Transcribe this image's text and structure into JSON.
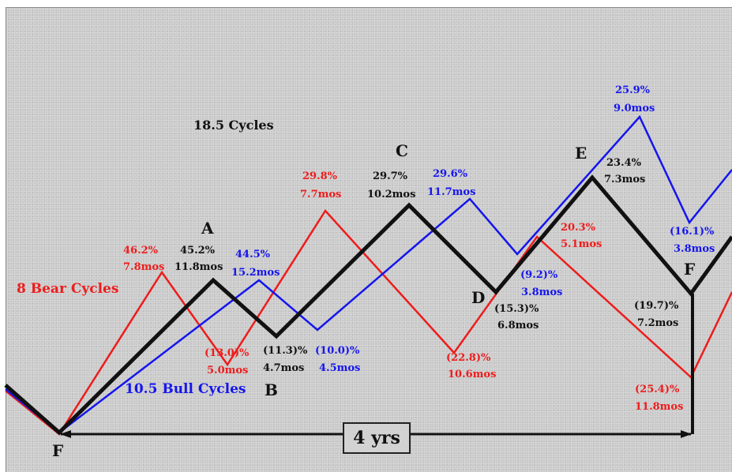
{
  "title": "18.5 Cycles",
  "bear_cycles_label": "8 Bear Cycles",
  "bull_cycles_label": "10.5 Bull Cycles",
  "span_label": "4 yrs",
  "colors": {
    "bear": "#ee1c1c",
    "bull": "#1515ee",
    "composite": "#111111"
  },
  "points": {
    "F_start": "F",
    "A": "A",
    "B": "B",
    "C": "C",
    "D": "D",
    "E": "E",
    "F_mid": "F"
  },
  "annotations": {
    "red": [
      {
        "pct": "46.2%",
        "dur": "7.8mos"
      },
      {
        "pct": "(13.0)%",
        "dur": "5.0mos"
      },
      {
        "pct": "29.8%",
        "dur": "7.7mos"
      },
      {
        "pct": "(22.8)%",
        "dur": "10.6mos"
      },
      {
        "pct": "20.3%",
        "dur": "5.1mos"
      },
      {
        "pct": "(25.4)%",
        "dur": "11.8mos"
      }
    ],
    "black": [
      {
        "pct": "45.2%",
        "dur": "11.8mos"
      },
      {
        "pct": "(11.3)%",
        "dur": "4.7mos"
      },
      {
        "pct": "29.7%",
        "dur": "10.2mos"
      },
      {
        "pct": "(15.3)%",
        "dur": "6.8mos"
      },
      {
        "pct": "23.4%",
        "dur": "7.3mos"
      },
      {
        "pct": "(19.7)%",
        "dur": "7.2mos"
      }
    ],
    "blue": [
      {
        "pct": "44.5%",
        "dur": "15.2mos"
      },
      {
        "pct": "(10.0)%",
        "dur": "4.5mos"
      },
      {
        "pct": "29.6%",
        "dur": "11.7mos"
      },
      {
        "pct": "(9.2)%",
        "dur": "3.8mos"
      },
      {
        "pct": "25.9%",
        "dur": "9.0mos"
      },
      {
        "pct": "(16.1)%",
        "dur": "3.8mos"
      }
    ]
  }
}
